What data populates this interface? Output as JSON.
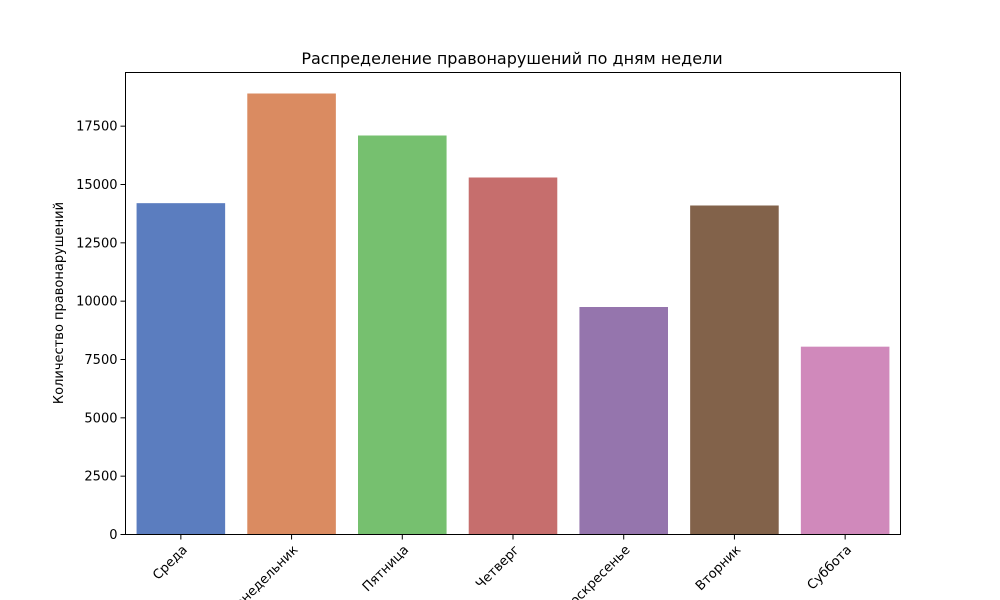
{
  "chart_data": {
    "type": "bar",
    "title": "Распределение правонарушений по дням недели",
    "xlabel": "",
    "ylabel": "Количество правонарушений",
    "categories": [
      "Среда",
      "Понедельник",
      "Пятница",
      "Четверг",
      "Воскресенье",
      "Вторник",
      "Суббота"
    ],
    "values": [
      14200,
      18900,
      17100,
      15300,
      9750,
      14100,
      8050
    ],
    "colors": [
      "#5b7dbf",
      "#da8b61",
      "#76c06f",
      "#c66e6d",
      "#9575ad",
      "#82624a",
      "#d089bb"
    ],
    "ylim": [
      0,
      19800
    ],
    "yticks": [
      0,
      2500,
      5000,
      7500,
      10000,
      12500,
      15000,
      17500
    ],
    "ytick_labels": [
      "0",
      "2500",
      "5000",
      "7500",
      "10000",
      "12500",
      "15000",
      "17500"
    ],
    "grid": false,
    "legend": "none"
  }
}
